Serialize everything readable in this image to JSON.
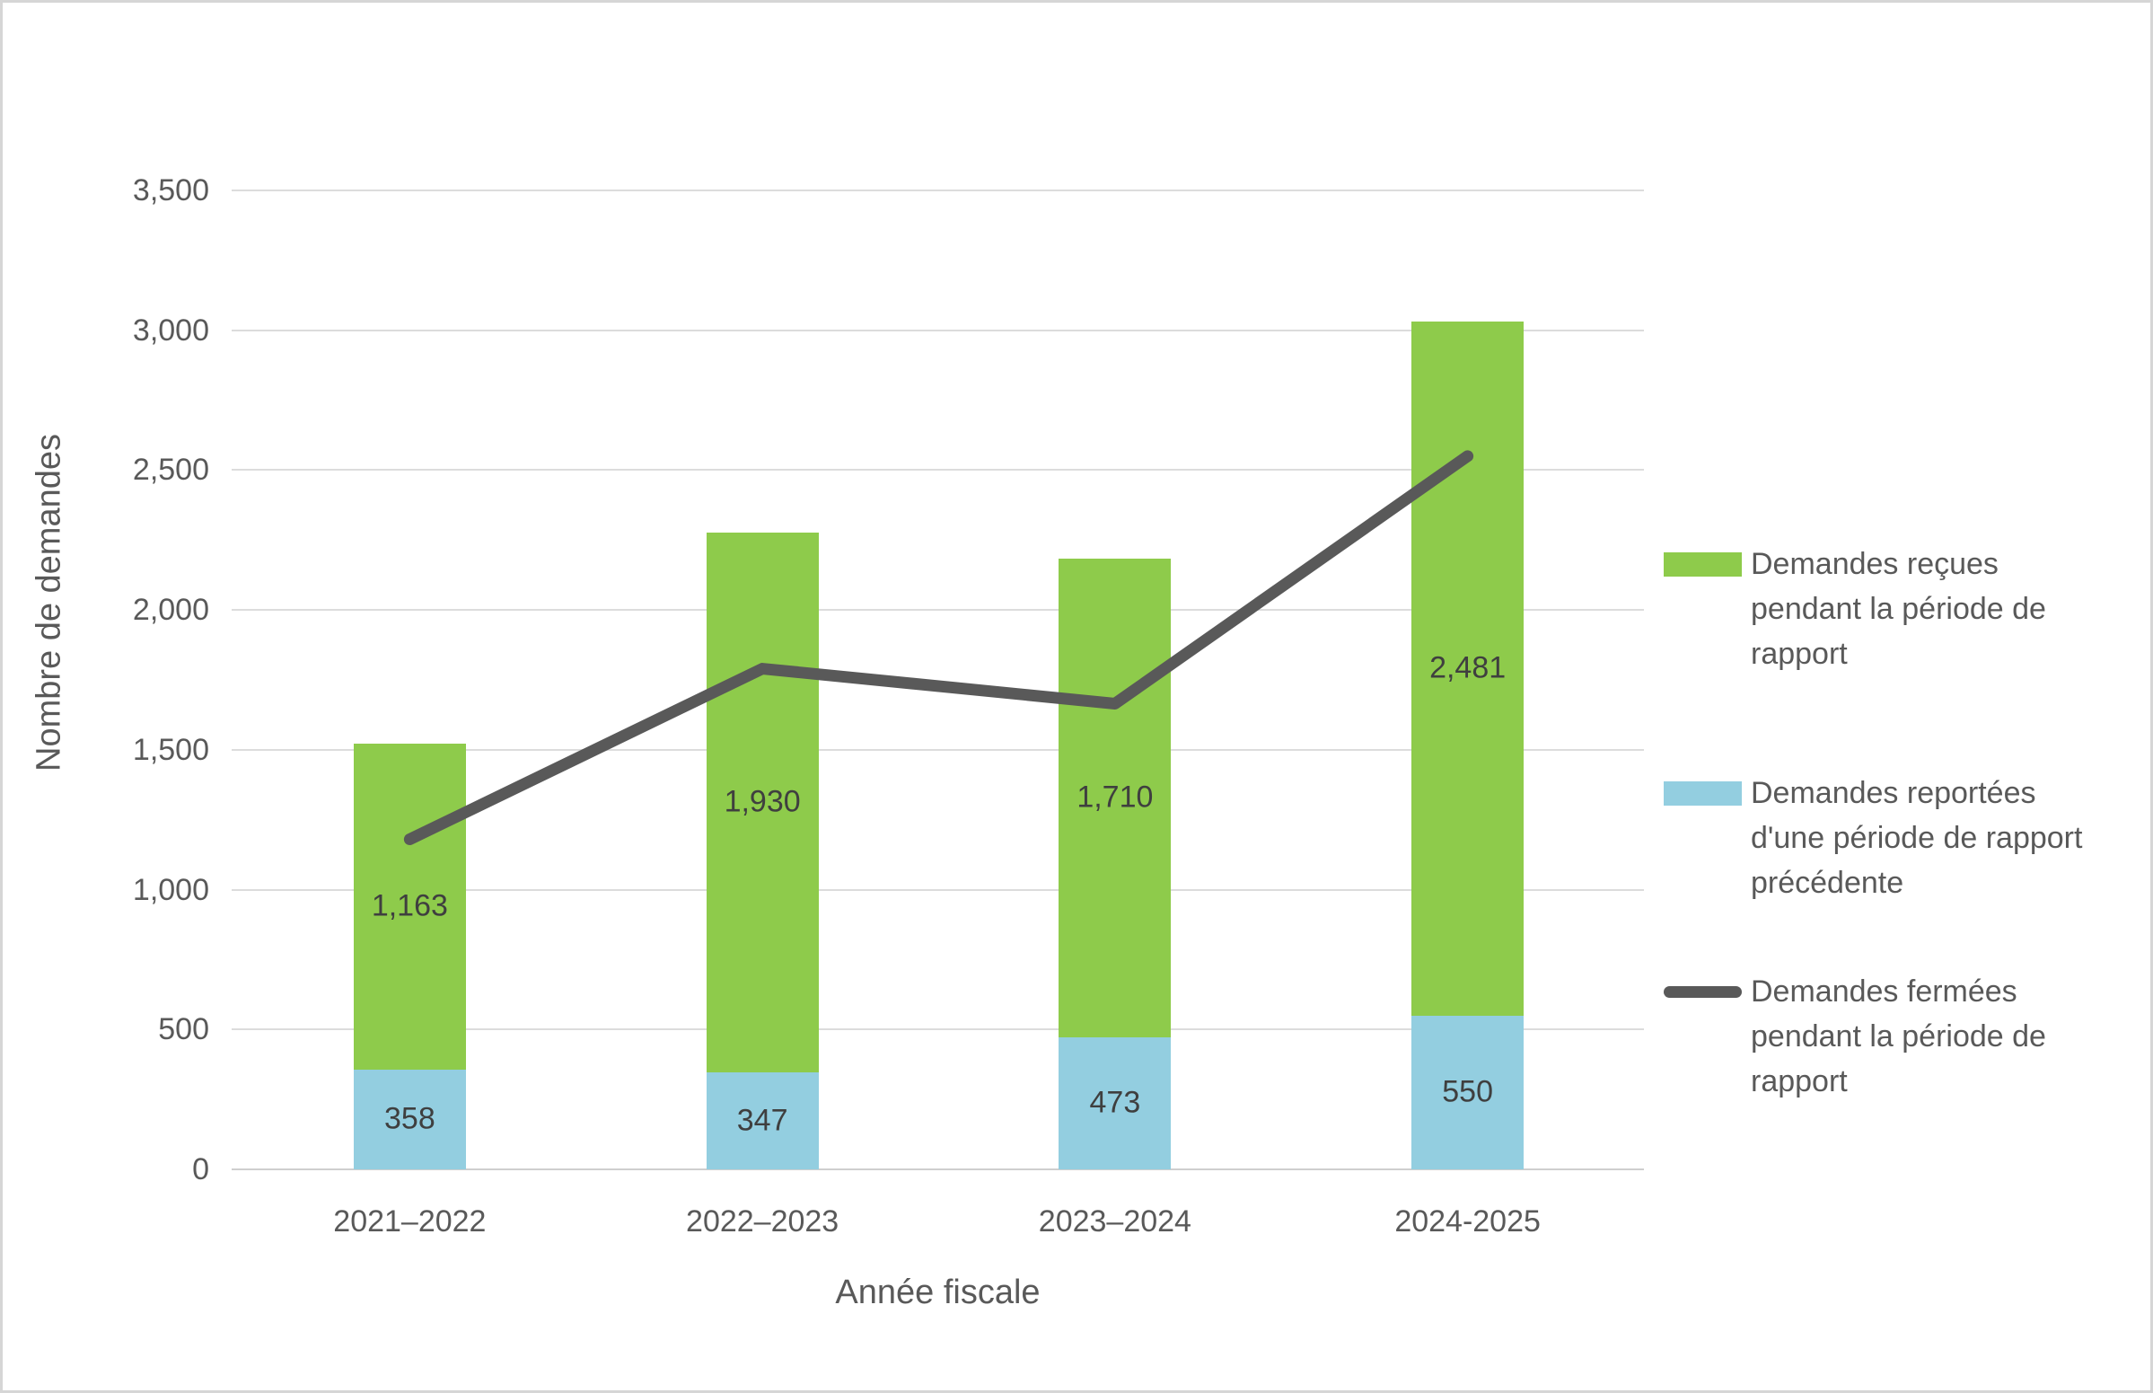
{
  "chart_data": {
    "type": "combo",
    "subtype": "stacked-bar-with-line",
    "title": "",
    "categories": [
      "2021–2022",
      "2022–2023",
      "2023–2024",
      "2024-2025"
    ],
    "series": [
      {
        "name": "Demandes reçues pendant la période de rapport",
        "type": "bar",
        "stack_position": "top",
        "color": "#8ECB4B",
        "values": [
          1163,
          1930,
          1710,
          2481
        ],
        "data_labels": [
          "1,163",
          "1,930",
          "1,710",
          "2,481"
        ]
      },
      {
        "name": "Demandes reportées d'une période de rapport précédente",
        "type": "bar",
        "stack_position": "bottom",
        "color": "#93CEE0",
        "values": [
          358,
          347,
          473,
          550
        ],
        "data_labels": [
          "358",
          "347",
          "473",
          "550"
        ]
      },
      {
        "name": "Demandes fermées pendant la période de rapport",
        "type": "line",
        "color": "#595959",
        "values": [
          1180,
          1790,
          1665,
          2550
        ],
        "values_note": "estimated from line position; no data labels shown in chart"
      }
    ],
    "stack_totals": [
      1521,
      2277,
      2183,
      3031
    ],
    "xlabel": "Année fiscale",
    "ylabel": "Nombre de demandes",
    "ylim": [
      0,
      3500
    ],
    "ytick_step": 500,
    "ytick_labels": [
      "0",
      "500",
      "1,000",
      "1,500",
      "2,000",
      "2,500",
      "3,000",
      "3,500"
    ],
    "grid": "horizontal",
    "legend_position": "right"
  },
  "legend": {
    "items": [
      {
        "label": "Demandes reçues\npendant la période de\nrapport",
        "swatch": "bar",
        "color": "#8ECB4B"
      },
      {
        "label": "Demandes reportées\nd'une période de rapport\nprécédente",
        "swatch": "bar",
        "color": "#93CEE0"
      },
      {
        "label": "Demandes fermées\npendant la période de\nrapport",
        "swatch": "line",
        "color": "#595959"
      }
    ]
  },
  "colors": {
    "gridline": "#DCDCDC",
    "axis_line": "#CFCFCF",
    "axis_text": "#595959",
    "data_label_text": "#3F3F3F",
    "frame_border": "#D6D6D6",
    "background": "#FFFFFF"
  }
}
